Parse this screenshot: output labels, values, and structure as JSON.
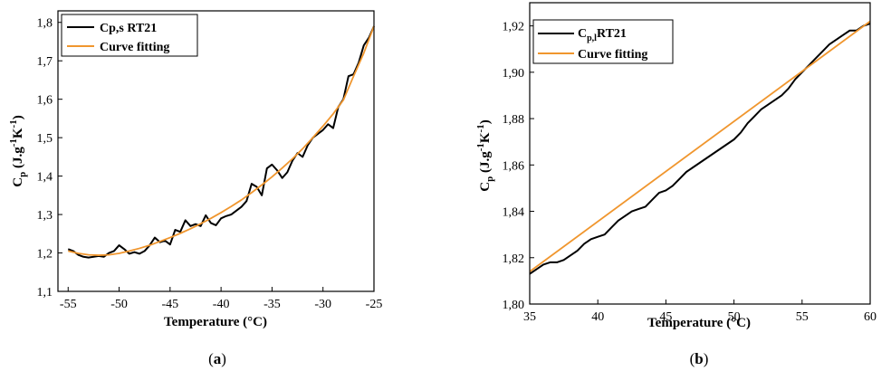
{
  "chart_data": [
    {
      "type": "line",
      "panel_label": "a",
      "xlabel": "Temperature (°C)",
      "ylabel": "C_p (J.g^-1 K^-1)",
      "xlim": [
        -56,
        -25
      ],
      "ylim": [
        1.1,
        1.83
      ],
      "xticks": [
        -55,
        -50,
        -45,
        -40,
        -35,
        -30,
        -25
      ],
      "yticks": [
        1.1,
        1.2,
        1.3,
        1.4,
        1.5,
        1.6,
        1.7,
        1.8
      ],
      "xtick_labels": [
        "-55",
        "-50",
        "-45",
        "-40",
        "-35",
        "-30",
        "-25"
      ],
      "ytick_labels": [
        "1,1",
        "1,2",
        "1,3",
        "1,4",
        "1,5",
        "1,6",
        "1,7",
        "1,8"
      ],
      "legend_position": "top-left",
      "series": [
        {
          "name": "Cp,s RT21",
          "color": "#000000",
          "x": [
            -55,
            -54.5,
            -54,
            -53.5,
            -53,
            -52.5,
            -52,
            -51.5,
            -51,
            -50.5,
            -50,
            -49.5,
            -49,
            -48.5,
            -48,
            -47.5,
            -47,
            -46.5,
            -46,
            -45.5,
            -45,
            -44.5,
            -44,
            -43.5,
            -43,
            -42.5,
            -42,
            -41.5,
            -41,
            -40.5,
            -40,
            -39.5,
            -39,
            -38.5,
            -38,
            -37.5,
            -37,
            -36.5,
            -36,
            -35.5,
            -35,
            -34.5,
            -34,
            -33.5,
            -33,
            -32.5,
            -32,
            -31.5,
            -31,
            -30.5,
            -30,
            -29.5,
            -29,
            -28.5,
            -28,
            -27.5,
            -27,
            -26.5,
            -26,
            -25.5,
            -25
          ],
          "y": [
            1.21,
            1.205,
            1.195,
            1.19,
            1.188,
            1.19,
            1.192,
            1.19,
            1.2,
            1.205,
            1.22,
            1.21,
            1.198,
            1.202,
            1.198,
            1.205,
            1.22,
            1.24,
            1.228,
            1.232,
            1.222,
            1.26,
            1.255,
            1.285,
            1.27,
            1.275,
            1.27,
            1.298,
            1.278,
            1.272,
            1.29,
            1.296,
            1.3,
            1.31,
            1.32,
            1.335,
            1.38,
            1.372,
            1.35,
            1.42,
            1.43,
            1.415,
            1.395,
            1.41,
            1.44,
            1.46,
            1.45,
            1.48,
            1.5,
            1.51,
            1.52,
            1.535,
            1.525,
            1.58,
            1.6,
            1.66,
            1.665,
            1.695,
            1.74,
            1.76,
            1.79
          ]
        },
        {
          "name": "Curve fitting",
          "color": "#f0962e",
          "x": [
            -55,
            -54,
            -53,
            -52,
            -51,
            -50,
            -49,
            -48,
            -47,
            -46,
            -45,
            -44,
            -43,
            -42,
            -41,
            -40,
            -39,
            -38,
            -37,
            -36,
            -35,
            -34,
            -33,
            -32,
            -31,
            -30,
            -29,
            -28,
            -27,
            -26,
            -25
          ],
          "y": [
            1.205,
            1.199,
            1.195,
            1.194,
            1.195,
            1.199,
            1.205,
            1.212,
            1.22,
            1.23,
            1.24,
            1.251,
            1.263,
            1.276,
            1.29,
            1.305,
            1.321,
            1.338,
            1.357,
            1.377,
            1.398,
            1.421,
            1.445,
            1.471,
            1.5,
            1.53,
            1.562,
            1.598,
            1.66,
            1.72,
            1.79
          ]
        }
      ]
    },
    {
      "type": "line",
      "panel_label": "b",
      "xlabel": "Temperature (°C)",
      "ylabel": "Cp (J.g^-1 K^-1)",
      "xlim": [
        35,
        60
      ],
      "ylim": [
        1.8,
        1.93
      ],
      "xticks": [
        35,
        40,
        45,
        50,
        55,
        60
      ],
      "yticks": [
        1.8,
        1.82,
        1.84,
        1.86,
        1.88,
        1.9,
        1.92
      ],
      "xtick_labels": [
        "35",
        "40",
        "45",
        "50",
        "55",
        "60"
      ],
      "ytick_labels": [
        "1,80",
        "1,82",
        "1,84",
        "1,86",
        "1,88",
        "1,90",
        "1,92"
      ],
      "legend_position": "top-left",
      "series": [
        {
          "name": "C_p,l RT21",
          "color": "#000000",
          "x": [
            35,
            35.5,
            36,
            36.5,
            37,
            37.5,
            38,
            38.5,
            39,
            39.5,
            40,
            40.5,
            41,
            41.5,
            42,
            42.5,
            43,
            43.5,
            44,
            44.5,
            45,
            45.5,
            46,
            46.5,
            47,
            47.5,
            48,
            48.5,
            49,
            49.5,
            50,
            50.5,
            51,
            51.5,
            52,
            52.5,
            53,
            53.5,
            54,
            54.5,
            55,
            55.5,
            56,
            56.5,
            57,
            57.5,
            58,
            58.5,
            59,
            59.5,
            60
          ],
          "y": [
            1.813,
            1.815,
            1.817,
            1.818,
            1.818,
            1.819,
            1.821,
            1.823,
            1.826,
            1.828,
            1.829,
            1.83,
            1.833,
            1.836,
            1.838,
            1.84,
            1.841,
            1.842,
            1.845,
            1.848,
            1.849,
            1.851,
            1.854,
            1.857,
            1.859,
            1.861,
            1.863,
            1.865,
            1.867,
            1.869,
            1.871,
            1.874,
            1.878,
            1.881,
            1.884,
            1.886,
            1.888,
            1.89,
            1.893,
            1.897,
            1.9,
            1.903,
            1.906,
            1.909,
            1.912,
            1.914,
            1.916,
            1.918,
            1.918,
            1.92,
            1.921
          ]
        },
        {
          "name": "Curve fitting",
          "color": "#f0962e",
          "x": [
            35,
            60
          ],
          "y": [
            1.814,
            1.922
          ]
        }
      ]
    }
  ]
}
